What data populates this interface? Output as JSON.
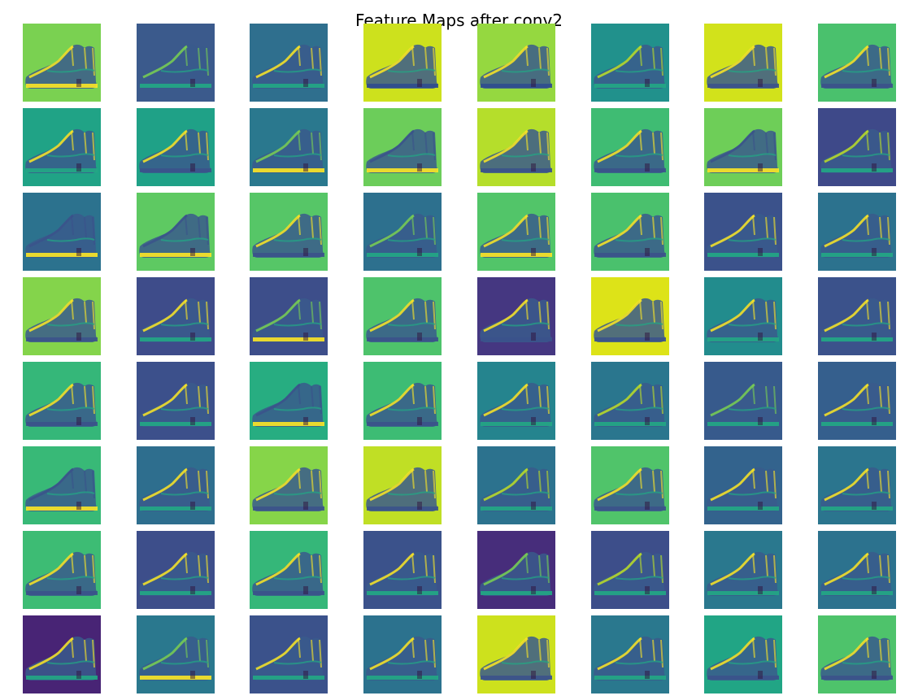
{
  "figure": {
    "title": "Feature Maps after conv2",
    "grid": {
      "rows": 8,
      "cols": 8
    },
    "colormap": "viridis",
    "shoe_tone": "#3a5b8c",
    "maps": [
      {
        "bg": "#7ad151",
        "sole": "#fde725",
        "hi": "#fde725"
      },
      {
        "bg": "#3b5a8c",
        "sole": "#22a884",
        "hi": "#7ad151"
      },
      {
        "bg": "#2f6f8e",
        "sole": "#22a884",
        "hi": "#fde725"
      },
      {
        "bg": "#cde11d",
        "sole": "#2f4b8e",
        "hi": "#fde725"
      },
      {
        "bg": "#95d840",
        "sole": "#2f4b8e",
        "hi": "#fde725"
      },
      {
        "bg": "#21918c",
        "sole": "#22a884",
        "hi": "#bddf26"
      },
      {
        "bg": "#d2e21b",
        "sole": "#3b528b",
        "hi": "#fde725"
      },
      {
        "bg": "#4ac16d",
        "sole": "#3b528b",
        "hi": "#fde725"
      },
      {
        "bg": "#20a386",
        "sole": "#22a884",
        "hi": "#fde725"
      },
      {
        "bg": "#1fa187",
        "sole": "#3b528b",
        "hi": "#fde725"
      },
      {
        "bg": "#2a788e",
        "sole": "#fde725",
        "hi": "#7ad151"
      },
      {
        "bg": "#6ccd5a",
        "sole": "#fde725",
        "hi": "#3b528b"
      },
      {
        "bg": "#b5de2b",
        "sole": "#3b528b",
        "hi": "#fde725"
      },
      {
        "bg": "#3fbc73",
        "sole": "#3b528b",
        "hi": "#fde725"
      },
      {
        "bg": "#6ece58",
        "sole": "#fde725",
        "hi": "#3b528b"
      },
      {
        "bg": "#3e4989",
        "sole": "#22a884",
        "hi": "#bddf26"
      },
      {
        "bg": "#2c728e",
        "sole": "#fde725",
        "hi": "#3b528b"
      },
      {
        "bg": "#5ec962",
        "sole": "#fde725",
        "hi": "#3b528b"
      },
      {
        "bg": "#56c667",
        "sole": "#3b528b",
        "hi": "#fde725"
      },
      {
        "bg": "#2d708e",
        "sole": "#22a884",
        "hi": "#7ad151"
      },
      {
        "bg": "#52c569",
        "sole": "#fde725",
        "hi": "#fde725"
      },
      {
        "bg": "#4ac16d",
        "sole": "#3b528b",
        "hi": "#fde725"
      },
      {
        "bg": "#3b528b",
        "sole": "#22a884",
        "hi": "#fde725"
      },
      {
        "bg": "#2c728e",
        "sole": "#22a884",
        "hi": "#fde725"
      },
      {
        "bg": "#84d44b",
        "sole": "#3b528b",
        "hi": "#fde725"
      },
      {
        "bg": "#3e4c8a",
        "sole": "#22a884",
        "hi": "#fde725"
      },
      {
        "bg": "#3d4e8a",
        "sole": "#fde725",
        "hi": "#7ad151"
      },
      {
        "bg": "#4ec36b",
        "sole": "#3b528b",
        "hi": "#fde725"
      },
      {
        "bg": "#453781",
        "sole": "#3b528b",
        "hi": "#fde725"
      },
      {
        "bg": "#dde318",
        "sole": "#3b528b",
        "hi": "#fde725"
      },
      {
        "bg": "#228c8d",
        "sole": "#22a884",
        "hi": "#fde725"
      },
      {
        "bg": "#3b528b",
        "sole": "#22a884",
        "hi": "#fde725"
      },
      {
        "bg": "#35b779",
        "sole": "#3b528b",
        "hi": "#fde725"
      },
      {
        "bg": "#3c508b",
        "sole": "#22a884",
        "hi": "#fde725"
      },
      {
        "bg": "#27ad81",
        "sole": "#fde725",
        "hi": "#3b528b"
      },
      {
        "bg": "#3dbc74",
        "sole": "#3b528b",
        "hi": "#fde725"
      },
      {
        "bg": "#25848e",
        "sole": "#22a884",
        "hi": "#fde725"
      },
      {
        "bg": "#2a768e",
        "sole": "#22a884",
        "hi": "#bddf26"
      },
      {
        "bg": "#375a8c",
        "sole": "#22a884",
        "hi": "#7ad151"
      },
      {
        "bg": "#355f8d",
        "sole": "#22a884",
        "hi": "#fde725"
      },
      {
        "bg": "#38b977",
        "sole": "#fde725",
        "hi": "#3b528b"
      },
      {
        "bg": "#2e6e8e",
        "sole": "#22a884",
        "hi": "#fde725"
      },
      {
        "bg": "#86d549",
        "sole": "#3b528b",
        "hi": "#fde725"
      },
      {
        "bg": "#c0df25",
        "sole": "#3b528b",
        "hi": "#fde725"
      },
      {
        "bg": "#2c728e",
        "sole": "#22a884",
        "hi": "#bddf26"
      },
      {
        "bg": "#50c46a",
        "sole": "#3b528b",
        "hi": "#fde725"
      },
      {
        "bg": "#33638d",
        "sole": "#22a884",
        "hi": "#fde725"
      },
      {
        "bg": "#2b758e",
        "sole": "#22a884",
        "hi": "#fde725"
      },
      {
        "bg": "#3dbc74",
        "sole": "#3b528b",
        "hi": "#fde725"
      },
      {
        "bg": "#3d4e8a",
        "sole": "#22a884",
        "hi": "#fde725"
      },
      {
        "bg": "#35b779",
        "sole": "#3b528b",
        "hi": "#fde725"
      },
      {
        "bg": "#3b528b",
        "sole": "#22a884",
        "hi": "#fde725"
      },
      {
        "bg": "#472d7b",
        "sole": "#22a884",
        "hi": "#7ad151"
      },
      {
        "bg": "#3d4e8a",
        "sole": "#22a884",
        "hi": "#bddf26"
      },
      {
        "bg": "#2a788e",
        "sole": "#22a884",
        "hi": "#fde725"
      },
      {
        "bg": "#2c728e",
        "sole": "#22a884",
        "hi": "#fde725"
      },
      {
        "bg": "#482475",
        "sole": "#22a884",
        "hi": "#fde725"
      },
      {
        "bg": "#2a788e",
        "sole": "#fde725",
        "hi": "#7ad151"
      },
      {
        "bg": "#3b528b",
        "sole": "#22a884",
        "hi": "#fde725"
      },
      {
        "bg": "#2c728e",
        "sole": "#22a884",
        "hi": "#fde725"
      },
      {
        "bg": "#cde11d",
        "sole": "#3b528b",
        "hi": "#fde725"
      },
      {
        "bg": "#2a788e",
        "sole": "#22a884",
        "hi": "#fde725"
      },
      {
        "bg": "#21a585",
        "sole": "#3b528b",
        "hi": "#fde725"
      },
      {
        "bg": "#4ec36b",
        "sole": "#3b528b",
        "hi": "#fde725"
      }
    ]
  }
}
